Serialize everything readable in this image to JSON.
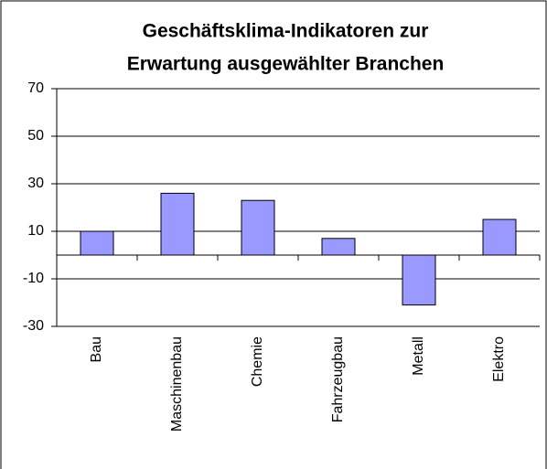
{
  "chart_data": {
    "type": "bar",
    "title": [
      "Geschäftsklima-Indikatoren zur",
      "Erwartung ausgewählter Branchen"
    ],
    "categories": [
      "Bau",
      "Maschinenbau",
      "Chemie",
      "Fahrzeugbau",
      "Metall",
      "Elektro"
    ],
    "values": [
      10,
      26,
      23,
      7,
      -21,
      15
    ],
    "color": "#9999ff",
    "ylim": [
      -30,
      70
    ],
    "yticks": [
      -30,
      -10,
      10,
      30,
      50,
      70
    ],
    "grid": true
  }
}
